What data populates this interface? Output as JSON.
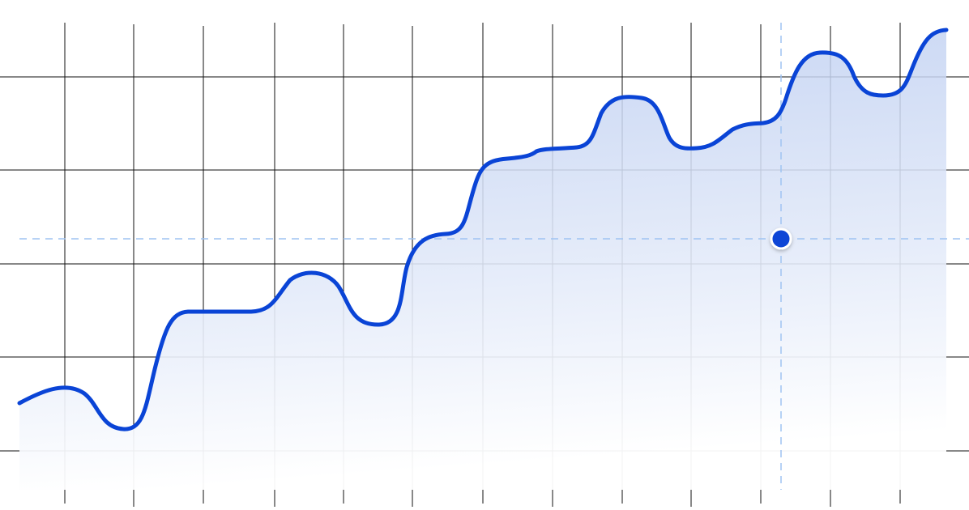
{
  "chart_data": {
    "type": "area",
    "title": "",
    "xlabel": "",
    "ylabel": "",
    "x": [
      0,
      0.7,
      1.0,
      1.3,
      2.0,
      3.0,
      3.5,
      4.0,
      4.5,
      5.0,
      5.5,
      6.0,
      6.5,
      7.0,
      7.3,
      7.8,
      8.0,
      8.6,
      9.0,
      9.5,
      10.0,
      10.5,
      11.0,
      11.5,
      12.0,
      12.5,
      13.0,
      13.5
    ],
    "ylim": [
      -0.5,
      5.0
    ],
    "xlim": [
      -0.65,
      13.5
    ],
    "series": [
      {
        "values": [
          0.5,
          0.7,
          0.6,
          0.2,
          1.6,
          1.6,
          1.95,
          1.4,
          2.3,
          2.9,
          3.9,
          4.0,
          4.1,
          4.5,
          3.8,
          3.8,
          3.9,
          4.2,
          4.1,
          4.65,
          4.9,
          4.3,
          4.5,
          5.1,
          5.1,
          5.1,
          5.1,
          5.1
        ]
      }
    ],
    "cursor": {
      "x": 10.45,
      "y": 2.65
    },
    "grid": true,
    "legend": "none",
    "colors": {
      "line": "#0a44d6",
      "fill_top": "#b9cbf0",
      "fill_bottom": "#ffffff",
      "grid": "#111111",
      "crosshair": "#9fc3f2",
      "marker": "#0a44d6"
    }
  }
}
